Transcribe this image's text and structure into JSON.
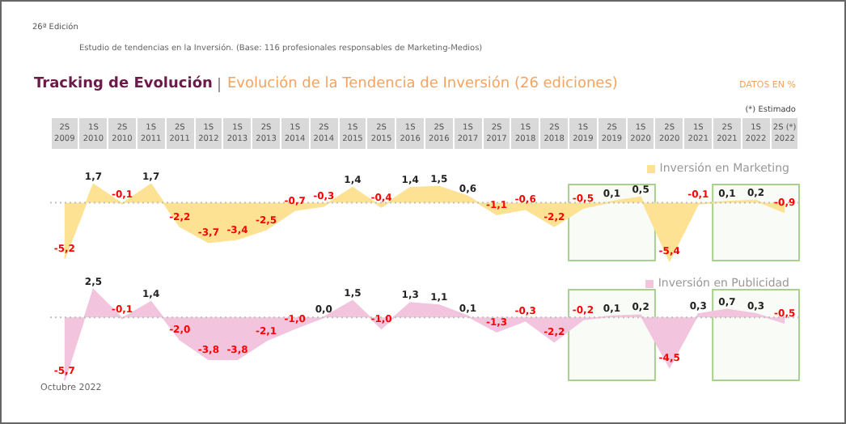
{
  "chart_data": [
    {
      "type": "area",
      "title": "Tracking de Evolución",
      "subtitle": "Evolución de la Tendencia de Inversión (26 ediciones)",
      "annotations": [
        "26ª Edición",
        "Estudio de tendencias en la Inversión. (Base: 116 profesionales responsables de Marketing-Medios)",
        "DATOS EN %",
        "(*) Estimado",
        "Octubre 2022"
      ],
      "categories": [
        "2S 2009",
        "1S 2010",
        "2S 2010",
        "1S 2011",
        "2S 2011",
        "1S 2012",
        "1S 2013",
        "2S 2013",
        "1S 2014",
        "2S 2014",
        "1S 2015",
        "2S 2015",
        "1S 2016",
        "2S 2016",
        "1S 2017",
        "2S 2017",
        "1S 2018",
        "2S 2018",
        "1S 2019",
        "2S 2019",
        "1S 2020",
        "2S 2020",
        "1S 2021",
        "2S 2021",
        "1S 2022",
        "2S (*) 2022"
      ],
      "series": [
        {
          "name": "Inversión en Marketing",
          "color": "#fde293",
          "values": [
            -5.2,
            1.7,
            -0.1,
            1.7,
            -2.2,
            -3.7,
            -3.4,
            -2.5,
            -0.7,
            -0.3,
            1.4,
            -0.4,
            1.4,
            1.5,
            0.6,
            -1.1,
            -0.6,
            -2.2,
            -0.5,
            0.1,
            0.5,
            -5.4,
            -0.1,
            0.1,
            0.2,
            -0.9
          ],
          "value_labels": [
            "-5,2",
            "1,7",
            "-0,1",
            "1,7",
            "-2,2",
            "-3,7",
            "-3,4",
            "-2,5",
            "-0,7",
            "-0,3",
            "1,4",
            "-0,4",
            "1,4",
            "1,5",
            "0,6",
            "-1,1",
            "-0,6",
            "-2,2",
            "-0,5",
            "0,1",
            "0,5",
            "-5,4",
            "-0,1",
            "0,1",
            "0,2",
            "-0,9"
          ]
        }
      ],
      "legend": "top right",
      "tick_labels": "x",
      "ref_lines": [
        {
          "axis": "y",
          "value": 0,
          "color": "#bfbfbf",
          "line_style": "dotted"
        }
      ],
      "bands": [
        {
          "axis": "x",
          "from": "1S 2019",
          "to": "1S 2020",
          "color": "#a9d18e"
        },
        {
          "axis": "x",
          "from": "2S 2021",
          "to": "2S (*) 2022",
          "color": "#a9d18e"
        }
      ]
    },
    {
      "type": "area",
      "categories": [
        "2S 2009",
        "1S 2010",
        "2S 2010",
        "1S 2011",
        "2S 2011",
        "1S 2012",
        "1S 2013",
        "2S 2013",
        "1S 2014",
        "2S 2014",
        "1S 2015",
        "2S 2015",
        "1S 2016",
        "2S 2016",
        "1S 2017",
        "2S 2017",
        "1S 2018",
        "2S 2018",
        "1S 2019",
        "2S 2019",
        "1S 2020",
        "2S 2020",
        "1S 2021",
        "2S 2021",
        "1S 2022",
        "2S (*) 2022"
      ],
      "series": [
        {
          "name": "Inversión en Publicidad",
          "color": "#f2c4de",
          "values": [
            -5.7,
            2.5,
            -0.1,
            1.4,
            -2.0,
            -3.8,
            -3.8,
            -2.1,
            -1.0,
            0.0,
            1.5,
            -1.0,
            1.3,
            1.1,
            0.1,
            -1.3,
            -0.3,
            -2.2,
            -0.2,
            0.1,
            0.2,
            -4.5,
            0.3,
            0.7,
            0.3,
            -0.5
          ],
          "value_labels": [
            "-5,7",
            "2,5",
            "-0,1",
            "1,4",
            "-2,0",
            "-3,8",
            "-3,8",
            "-2,1",
            "-1,0",
            "0,0",
            "1,5",
            "-1,0",
            "1,3",
            "1,1",
            "0,1",
            "-1,3",
            "-0,3",
            "-2,2",
            "-0,2",
            "0,1",
            "0,2",
            "-4,5",
            "0,3",
            "0,7",
            "0,3",
            "-0,5"
          ]
        }
      ],
      "legend": "top right",
      "tick_labels": false,
      "ref_lines": [
        {
          "axis": "y",
          "value": 0,
          "color": "#bfbfbf",
          "line_style": "dotted"
        }
      ],
      "bands": [
        {
          "axis": "x",
          "from": "1S 2019",
          "to": "1S 2020",
          "color": "#a9d18e"
        },
        {
          "axis": "x",
          "from": "2S 2021",
          "to": "2S (*) 2022",
          "color": "#a9d18e"
        }
      ]
    }
  ]
}
